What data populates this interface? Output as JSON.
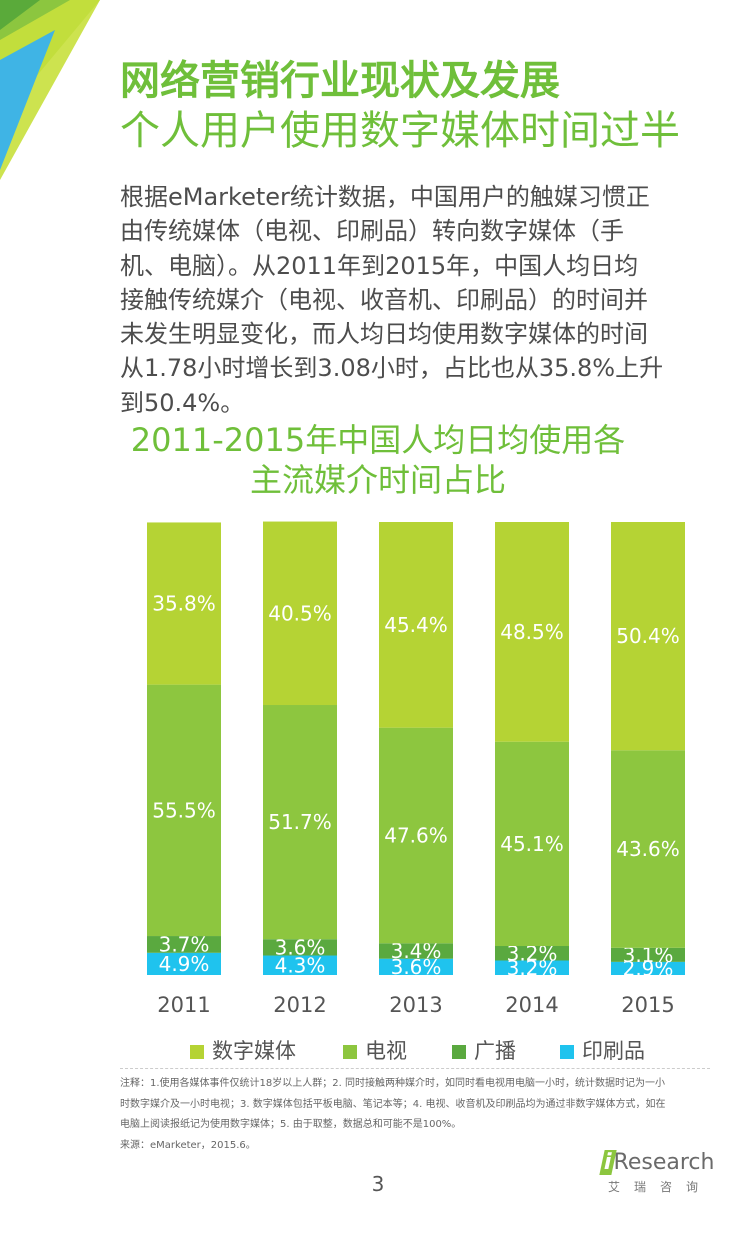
{
  "header": {
    "title_line1": "网络营销行业现状及发展",
    "title_line2": "个人用户使用数字媒体时间过半"
  },
  "body": {
    "lines": [
      "根据eMarketer统计数据，中国用户的触媒习惯正",
      "由传统媒体（电视、印刷品）转向数字媒体（手",
      "机、电脑）。从2011年到2015年，中国人均日均",
      "接触传统媒介（电视、收音机、印刷品）的时间并",
      "未发生明显变化，而人均日均使用数字媒体的时间",
      "从1.78小时增长到3.08小时，占比也从35.8%上升",
      "到50.4%。"
    ]
  },
  "chart_data": {
    "type": "bar",
    "stacked": true,
    "title_lines": [
      "2011-2015年中国人均日均使用各",
      "主流媒介时间占比"
    ],
    "categories": [
      "2011",
      "2012",
      "2013",
      "2014",
      "2015"
    ],
    "series": [
      {
        "name": "印刷品",
        "color": "#1fc3ee",
        "values": [
          4.9,
          4.3,
          3.6,
          3.2,
          2.9
        ]
      },
      {
        "name": "广播",
        "color": "#5aa93f",
        "values": [
          3.7,
          3.6,
          3.4,
          3.2,
          3.1
        ]
      },
      {
        "name": "电视",
        "color": "#8dc63f",
        "values": [
          55.5,
          51.7,
          47.6,
          45.1,
          43.6
        ]
      },
      {
        "name": "数字媒体",
        "color": "#b5d334",
        "values": [
          35.8,
          40.5,
          45.4,
          48.5,
          50.4
        ]
      }
    ],
    "value_suffix": "%",
    "ylim": [
      0,
      100
    ],
    "legend_order": [
      "数字媒体",
      "电视",
      "广播",
      "印刷品"
    ],
    "legend_position": "bottom"
  },
  "notes": {
    "lines": [
      "注释：1.使用各媒体事件仅统计18岁以上人群；2. 同时接触两种媒介时，如同时看电视用电脑一小时，统计数据时记为一小",
      "时数字媒介及一小时电视；3. 数字媒体包括平板电脑、笔记本等；4. 电视、收音机及印刷品均为通过非数字媒体方式，如在",
      "电脑上阅读报纸记为使用数字媒体；5. 由于取整，数据总和可能不是100%。",
      "来源：eMarketer，2015.6。"
    ]
  },
  "footer": {
    "page_number": "3",
    "logo_i": "i",
    "logo_text": "Research",
    "logo_sub": "艾瑞咨询"
  }
}
